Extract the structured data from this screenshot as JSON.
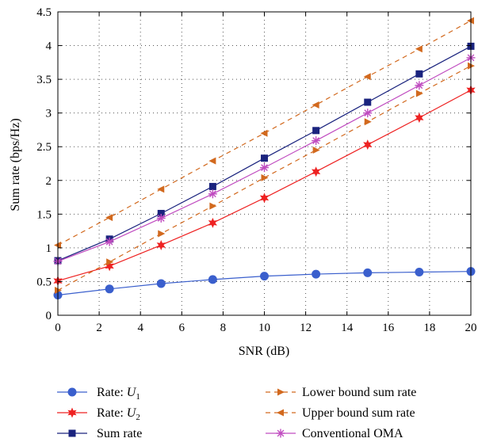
{
  "chart_data": {
    "type": "line",
    "xlabel": "SNR (dB)",
    "ylabel": "Sum rate (bps/Hz)",
    "xlim": [
      0,
      20
    ],
    "ylim": [
      0,
      4.5
    ],
    "xticks": [
      0,
      2,
      4,
      6,
      8,
      10,
      12,
      14,
      16,
      18,
      20
    ],
    "yticks": [
      0,
      0.5,
      1,
      1.5,
      2,
      2.5,
      3,
      3.5,
      4,
      4.5
    ],
    "xtick_labels": [
      "0",
      "2",
      "4",
      "6",
      "8",
      "10",
      "12",
      "14",
      "16",
      "18",
      "20"
    ],
    "ytick_labels": [
      "0",
      "0.5",
      "1",
      "1.5",
      "2",
      "2.5",
      "3",
      "3.5",
      "4",
      "4.5"
    ],
    "grid": true,
    "legend_position": "below",
    "x": [
      0,
      2.5,
      5,
      7.5,
      10,
      12.5,
      15,
      17.5,
      20
    ],
    "series": [
      {
        "name": "Rate: U1",
        "legend_main": "Rate: ",
        "legend_var": "U",
        "legend_sub": "1",
        "values": [
          0.3,
          0.39,
          0.47,
          0.53,
          0.58,
          0.61,
          0.63,
          0.64,
          0.65
        ],
        "color": "#3a5fcd",
        "marker": "circle",
        "dash": false
      },
      {
        "name": "Rate: U2",
        "legend_main": "Rate: ",
        "legend_var": "U",
        "legend_sub": "2",
        "values": [
          0.51,
          0.73,
          1.04,
          1.37,
          1.74,
          2.13,
          2.53,
          2.93,
          3.34
        ],
        "color": "#ee2222",
        "marker": "star6",
        "dash": false
      },
      {
        "name": "Sum rate",
        "legend_main": "Sum rate",
        "legend_var": "",
        "legend_sub": "",
        "values": [
          0.81,
          1.13,
          1.51,
          1.91,
          2.33,
          2.74,
          3.16,
          3.58,
          3.99
        ],
        "color": "#1a237e",
        "marker": "square",
        "dash": false
      },
      {
        "name": "Lower bound sum rate",
        "legend_main": "Lower bound sum rate",
        "legend_var": "",
        "legend_sub": "",
        "values": [
          0.37,
          0.79,
          1.21,
          1.62,
          2.04,
          2.45,
          2.87,
          3.29,
          3.7
        ],
        "color": "#d2691e",
        "marker": "tri-right",
        "dash": true
      },
      {
        "name": "Upper bound sum rate",
        "legend_main": "Upper bound sum rate",
        "legend_var": "",
        "legend_sub": "",
        "values": [
          1.04,
          1.45,
          1.87,
          2.29,
          2.7,
          3.12,
          3.54,
          3.95,
          4.37
        ],
        "color": "#d2691e",
        "marker": "tri-left",
        "dash": true
      },
      {
        "name": "Conventional OMA",
        "legend_main": "Conventional OMA",
        "legend_var": "",
        "legend_sub": "",
        "values": [
          0.8,
          1.09,
          1.44,
          1.8,
          2.19,
          2.59,
          3.0,
          3.41,
          3.82
        ],
        "color": "#c04cc0",
        "marker": "asterisk",
        "dash": false
      }
    ]
  }
}
